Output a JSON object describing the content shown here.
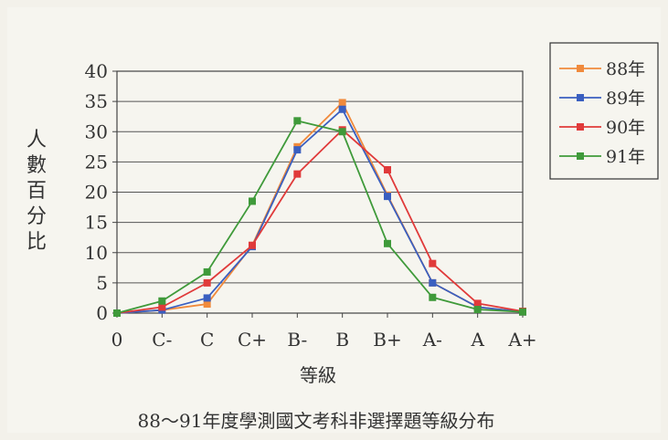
{
  "chart_data": {
    "type": "line",
    "title": "88～91年度學測國文考科非選擇題等級分布",
    "xlabel": "等級",
    "ylabel": "人數百分比",
    "categories": [
      "0",
      "C-",
      "C",
      "C+",
      "B-",
      "B",
      "B+",
      "A-",
      "A",
      "A+"
    ],
    "yticks": [
      "0",
      "5",
      "10",
      "15",
      "20",
      "25",
      "30",
      "35",
      "40"
    ],
    "ylim": [
      0,
      40
    ],
    "grid": true,
    "legend_position": "top-right",
    "series": [
      {
        "name": "88年",
        "color": "#f08a3c",
        "values": [
          0,
          0.5,
          1.5,
          11.2,
          27.5,
          34.8,
          19.5,
          5.0,
          1.0,
          0.2
        ]
      },
      {
        "name": "89年",
        "color": "#3a5fc0",
        "values": [
          0,
          0.5,
          2.5,
          11.0,
          27.0,
          33.7,
          19.3,
          5.0,
          1.0,
          0.2
        ]
      },
      {
        "name": "90年",
        "color": "#e03a3a",
        "values": [
          0,
          1.0,
          5.0,
          11.2,
          23.0,
          30.3,
          23.7,
          8.2,
          1.6,
          0.3
        ]
      },
      {
        "name": "91年",
        "color": "#3f9a3a",
        "values": [
          0,
          2.0,
          6.8,
          18.5,
          31.8,
          30.0,
          11.5,
          2.6,
          0.6,
          0.2
        ]
      }
    ]
  }
}
